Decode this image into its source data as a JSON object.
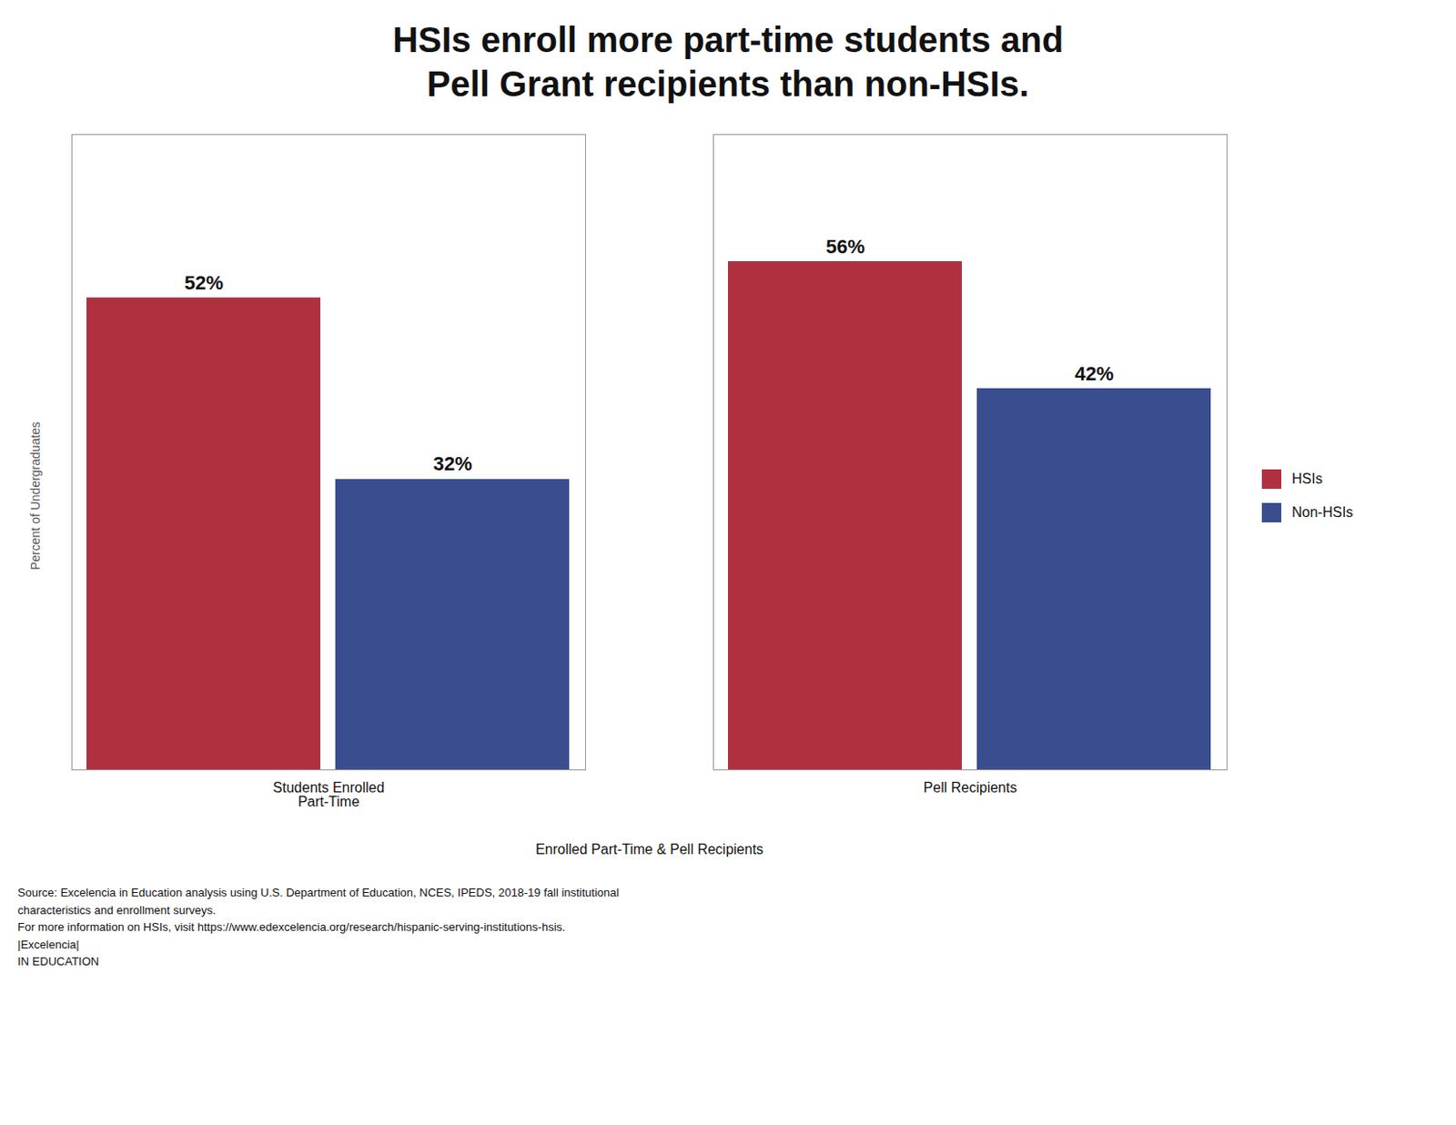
{
  "chart_data": {
    "type": "bar",
    "title": "HSIs enroll more part-time students and\nPell Grant recipients than non-HSIs.",
    "categories": [
      "Students Enrolled\nPart-Time",
      "Pell Recipients"
    ],
    "series": [
      {
        "name": "HSIs",
        "color": "#b03040",
        "values": [
          52,
          56
        ],
        "value_labels": [
          "52%",
          "56%"
        ]
      },
      {
        "name": "Non-HSIs",
        "color": "#3a4d8f",
        "values": [
          32,
          42
        ],
        "value_labels": [
          "32%",
          "42%"
        ]
      }
    ],
    "xlabel": "Enrolled Part-Time & Pell Recipients",
    "ylabel": "Percent of Undergraduates",
    "ylim": [
      0,
      70
    ],
    "yticks": [],
    "tick_labels": "x",
    "data_labels": true,
    "legend": "right",
    "grid": false,
    "annotations": [
      "Source: Excelencia in Education analysis using U.S. Department of Education, NCES, IPEDS, 2018-19 fall institutional",
      "characteristics and enrollment surveys.",
      "For more information on HSIs, visit https://www.edexcelencia.org/research/hispanic-serving-institutions-hsis.",
      "|Excelencia|",
      "IN EDUCATION"
    ]
  }
}
